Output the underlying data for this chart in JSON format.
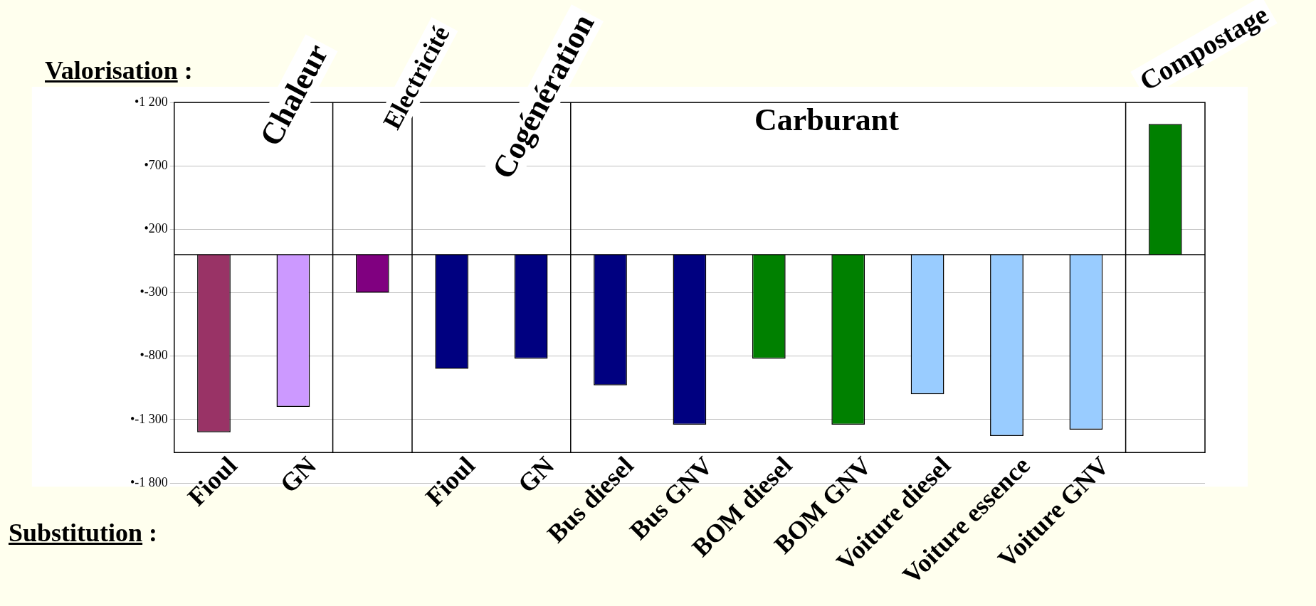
{
  "chart_data": {
    "type": "bar",
    "categories": [
      "Fioul",
      "GN",
      null,
      "Fioul",
      "GN",
      "Bus diesel",
      "Bus GNV",
      "BOM diesel",
      "BOM GNV",
      "Voiture diesel",
      "Voiture essence",
      "Voiture GNV",
      null
    ],
    "values": [
      -1400,
      -1200,
      -300,
      -900,
      -820,
      -1030,
      -1340,
      -820,
      -1340,
      -1100,
      -1430,
      -1380,
      1030
    ],
    "colors": [
      "#993366",
      "#cc99ff",
      "#800080",
      "#000080",
      "#000080",
      "#000080",
      "#000080",
      "#008000",
      "#008000",
      "#99ccff",
      "#99ccff",
      "#99ccff",
      "#008000"
    ],
    "ylim": [
      -1800,
      1200
    ],
    "yticks": [
      {
        "value": 1200,
        "label": "•1 200"
      },
      {
        "value": 700,
        "label": "•700"
      },
      {
        "value": 200,
        "label": "•200"
      },
      {
        "value": -300,
        "label": "•-300"
      },
      {
        "value": -800,
        "label": "•-800"
      },
      {
        "value": -1300,
        "label": "•-1 300"
      },
      {
        "value": -1800,
        "label": "•-1 800"
      }
    ],
    "grid": "y",
    "ref_lines": [
      {
        "axis": "y",
        "value": 0,
        "color": "#000000"
      }
    ],
    "annotations": [
      "Valorisation :",
      "Substitution :",
      "Chaleur",
      "Electricité",
      "Cogénération",
      "Carburant",
      "Compostage"
    ]
  }
}
